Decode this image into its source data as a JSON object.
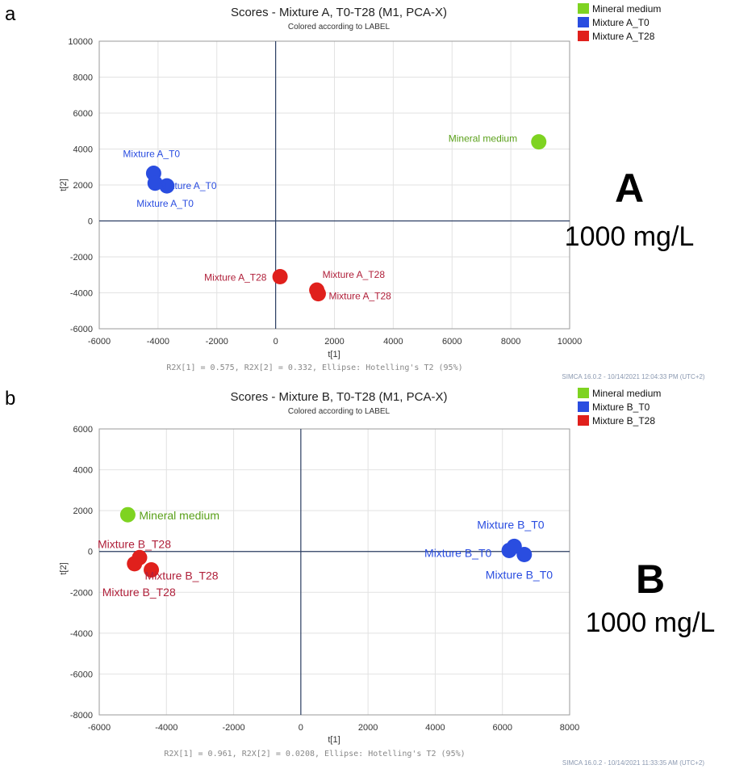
{
  "chart_data": [
    {
      "type": "scatter",
      "panel_letter": "a",
      "title": "Scores - Mixture A, T0-T28 (M1, PCA-X)",
      "subtitle": "Colored according to LABEL",
      "xlabel": "t[1]",
      "ylabel": "t[2]",
      "xlim": [
        -6000,
        10000
      ],
      "ylim": [
        -6000,
        10000
      ],
      "xticks": [
        "-6000",
        "-4000",
        "-2000",
        "0",
        "2000",
        "4000",
        "6000",
        "8000",
        "10000"
      ],
      "yticks": [
        "10000",
        "8000",
        "6000",
        "4000",
        "2000",
        "0",
        "-2000",
        "-4000",
        "-6000"
      ],
      "grid": true,
      "legend_position": "top-right",
      "series": [
        {
          "name": "Mineral medium",
          "color": "#7ed321",
          "label_color": "#5aa01a",
          "points": [
            {
              "x": 8950,
              "y": 4400,
              "label": "Mineral medium"
            }
          ]
        },
        {
          "name": "Mixture A_T0",
          "color": "#2a4de0",
          "label_color": "#2a4de0",
          "points": [
            {
              "x": -4150,
              "y": 2650,
              "label": "Mixture A_T0"
            },
            {
              "x": -4100,
              "y": 2100,
              "label": "Mixture A_T0"
            },
            {
              "x": -3700,
              "y": 1950,
              "label": "Mixture A_T0"
            }
          ]
        },
        {
          "name": "Mixture A_T28",
          "color": "#e0201c",
          "label_color": "#b0203a",
          "points": [
            {
              "x": 150,
              "y": -3100,
              "label": "Mixture A_T28"
            },
            {
              "x": 1400,
              "y": -3850,
              "label": "Mixture A_T28"
            },
            {
              "x": 1450,
              "y": -4050,
              "label": "Mixture A_T28"
            }
          ]
        }
      ],
      "footer": "R2X[1] = 0.575, R2X[2] = 0.332, Ellipse: Hotelling's T2 (95%)",
      "stamp": "SIMCA 16.0.2 - 10/14/2021 12:04:33 PM (UTC+2)",
      "annotation_letter": "A",
      "annotation_concentration": "1000 mg/L"
    },
    {
      "type": "scatter",
      "panel_letter": "b",
      "title": "Scores - Mixture B, T0-T28 (M1, PCA-X)",
      "subtitle": "Colored according to LABEL",
      "xlabel": "t[1]",
      "ylabel": "t[2]",
      "xlim": [
        -6000,
        8000
      ],
      "ylim": [
        -8000,
        6000
      ],
      "xticks": [
        "-6000",
        "-4000",
        "-2000",
        "0",
        "2000",
        "4000",
        "6000",
        "8000"
      ],
      "yticks": [
        "6000",
        "4000",
        "2000",
        "0",
        "-2000",
        "-4000",
        "-6000",
        "-8000"
      ],
      "grid": true,
      "legend_position": "top-right",
      "series": [
        {
          "name": "Mineral medium",
          "color": "#7ed321",
          "label_color": "#5aa01a",
          "points": [
            {
              "x": -5150,
              "y": 1800,
              "label": "Mineral medium"
            }
          ]
        },
        {
          "name": "Mixture B_T0",
          "color": "#2a4de0",
          "label_color": "#2a4de0",
          "points": [
            {
              "x": 6350,
              "y": 250,
              "label": "Mixture B_T0"
            },
            {
              "x": 6200,
              "y": 50,
              "label": "Mixture B_T0"
            },
            {
              "x": 6650,
              "y": -150,
              "label": "Mixture B_T0"
            }
          ]
        },
        {
          "name": "Mixture B_T28",
          "color": "#e0201c",
          "label_color": "#b0203a",
          "points": [
            {
              "x": -4800,
              "y": -300,
              "label": "Mixture B_T28"
            },
            {
              "x": -4450,
              "y": -900,
              "label": "Mixture B_T28"
            },
            {
              "x": -4950,
              "y": -600,
              "label": "Mixture B_T28"
            }
          ]
        }
      ],
      "footer": "R2X[1] = 0.961, R2X[2] = 0.0208, Ellipse: Hotelling's T2 (95%)",
      "stamp": "SIMCA 16.0.2 - 10/14/2021 11:33:35 AM (UTC+2)",
      "annotation_letter": "B",
      "annotation_concentration": "1000 mg/L"
    }
  ]
}
